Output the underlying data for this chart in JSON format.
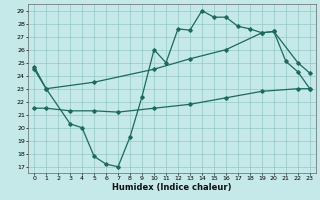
{
  "xlabel": "Humidex (Indice chaleur)",
  "bg_color": "#c5e8e8",
  "grid_color": "#96c8c8",
  "line_color": "#1a6b5a",
  "xlim": [
    -0.5,
    23.5
  ],
  "ylim": [
    16.5,
    29.5
  ],
  "yticks": [
    17,
    18,
    19,
    20,
    21,
    22,
    23,
    24,
    25,
    26,
    27,
    28,
    29
  ],
  "xticks": [
    0,
    1,
    2,
    3,
    4,
    5,
    6,
    7,
    8,
    9,
    10,
    11,
    12,
    13,
    14,
    15,
    16,
    17,
    18,
    19,
    20,
    21,
    22,
    23
  ],
  "line1_x": [
    0,
    1,
    3,
    4,
    5,
    6,
    7,
    8,
    9,
    10,
    11,
    12,
    13,
    14,
    15,
    16,
    17,
    18,
    19,
    20,
    21,
    22,
    23
  ],
  "line1_y": [
    24.7,
    23.0,
    20.3,
    20.0,
    17.8,
    17.2,
    17.0,
    19.3,
    22.4,
    26.0,
    25.0,
    27.6,
    27.5,
    29.0,
    28.5,
    28.5,
    27.8,
    27.6,
    27.3,
    27.4,
    25.1,
    24.3,
    23.0
  ],
  "line2_x": [
    0,
    1,
    5,
    10,
    13,
    16,
    19,
    20,
    22,
    23
  ],
  "line2_y": [
    24.5,
    23.0,
    23.5,
    24.5,
    25.3,
    26.0,
    27.3,
    27.4,
    25.0,
    24.2
  ],
  "line3_x": [
    0,
    1,
    3,
    5,
    7,
    10,
    13,
    16,
    19,
    22,
    23
  ],
  "line3_y": [
    21.5,
    21.5,
    21.3,
    21.3,
    21.2,
    21.5,
    21.8,
    22.3,
    22.8,
    23.0,
    23.0
  ]
}
